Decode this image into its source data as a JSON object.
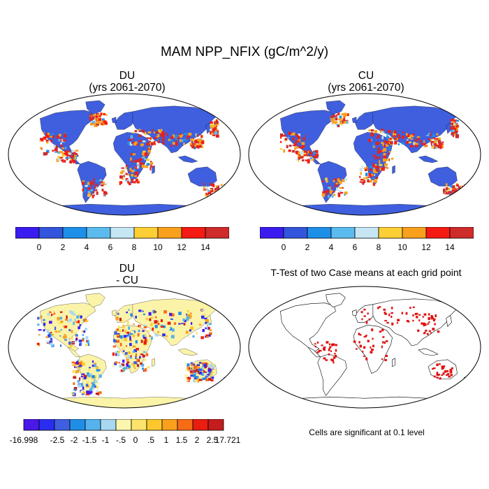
{
  "main_title": "MAM NPP_NFIX (gC/m^2/y)",
  "panels": {
    "du": {
      "title_line1": "DU",
      "title_line2": "(yrs 2061-2070)"
    },
    "cu": {
      "title_line1": "CU",
      "title_line2": "(yrs 2061-2070)"
    },
    "diff": {
      "title_line1": "DU",
      "title_line2": "- CU"
    },
    "ttest": {
      "title": "T-Test of two Case means at each grid point",
      "note": "Cells are significant at 0.1 level"
    }
  },
  "colorbar_top": {
    "colors": [
      "#3a1cf0",
      "#3355dd",
      "#1e8fe8",
      "#5cbbee",
      "#c6e6f4",
      "#fccf34",
      "#f9a11c",
      "#f51b12",
      "#cf2b2b"
    ],
    "labels": [
      "0",
      "2",
      "4",
      "6",
      "8",
      "10",
      "12",
      "14"
    ]
  },
  "colorbar_diff": {
    "colors": [
      "#4a18e8",
      "#2a2df0",
      "#3f5fe0",
      "#1f8ee6",
      "#55b2ec",
      "#a8d8f1",
      "#fbf6ad",
      "#fce46a",
      "#fcc82e",
      "#f9a01c",
      "#f66c15",
      "#e91d10",
      "#c41d1d"
    ],
    "labels": [
      "-16.998",
      "-2.5",
      "-2",
      "-1.5",
      "-1",
      "-.5",
      "0",
      ".5",
      "1",
      "1.5",
      "2",
      "2.5",
      "17.721"
    ]
  },
  "chart_data": [
    {
      "type": "heatmap",
      "title": "DU (yrs 2061-2070)",
      "variable": "NPP_NFIX",
      "units": "gC/m^2/y",
      "levels": [
        0,
        2,
        4,
        6,
        8,
        10,
        12,
        14
      ]
    },
    {
      "type": "heatmap",
      "title": "CU (yrs 2061-2070)",
      "variable": "NPP_NFIX",
      "units": "gC/m^2/y",
      "levels": [
        0,
        2,
        4,
        6,
        8,
        10,
        12,
        14
      ]
    },
    {
      "type": "heatmap",
      "title": "DU - CU",
      "levels": [
        -2.5,
        -2,
        -1.5,
        -1,
        -0.5,
        0,
        0.5,
        1,
        1.5,
        2,
        2.5
      ],
      "min": -16.998,
      "max": 17.721
    },
    {
      "type": "heatmap",
      "title": "T-Test of two Case means at each grid point",
      "significance_level": 0.1
    }
  ]
}
